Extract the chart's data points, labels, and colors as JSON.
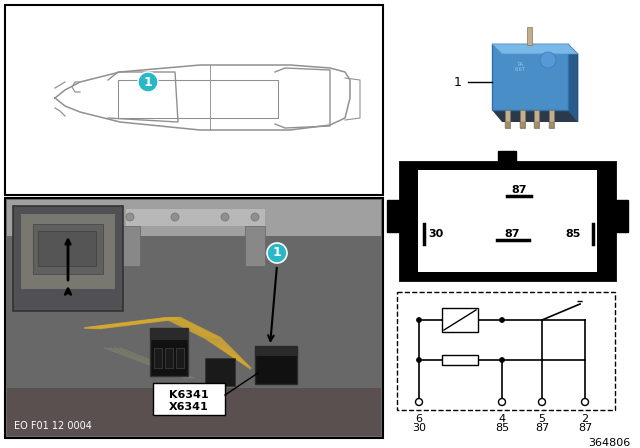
{
  "bg_color": "#ffffff",
  "teal_color": "#29b8c8",
  "car_color": "#909090",
  "photo_bg": "#7a7a7a",
  "photo_dark": "#4a4a4a",
  "relay_blue_main": "#4a8fc4",
  "relay_blue_top": "#6aaee0",
  "relay_blue_side": "#3a6fa0",
  "pin_metal": "#aaaaaa",
  "conn_box_fill": "#000000",
  "conn_inner_fill": "#ffffff",
  "label_1": "1",
  "k6341": "K6341",
  "x6341": "X6341",
  "eo_text": "EO F01 12 0004",
  "ref_num": "364806",
  "conn_pin_top": "87",
  "conn_pin_mid_left": "30",
  "conn_pin_mid_center": "87",
  "conn_pin_mid_right": "85",
  "circuit_pins_row1": [
    "6",
    "4",
    "5",
    "2"
  ],
  "circuit_pins_row2": [
    "30",
    "85",
    "87",
    "87"
  ]
}
